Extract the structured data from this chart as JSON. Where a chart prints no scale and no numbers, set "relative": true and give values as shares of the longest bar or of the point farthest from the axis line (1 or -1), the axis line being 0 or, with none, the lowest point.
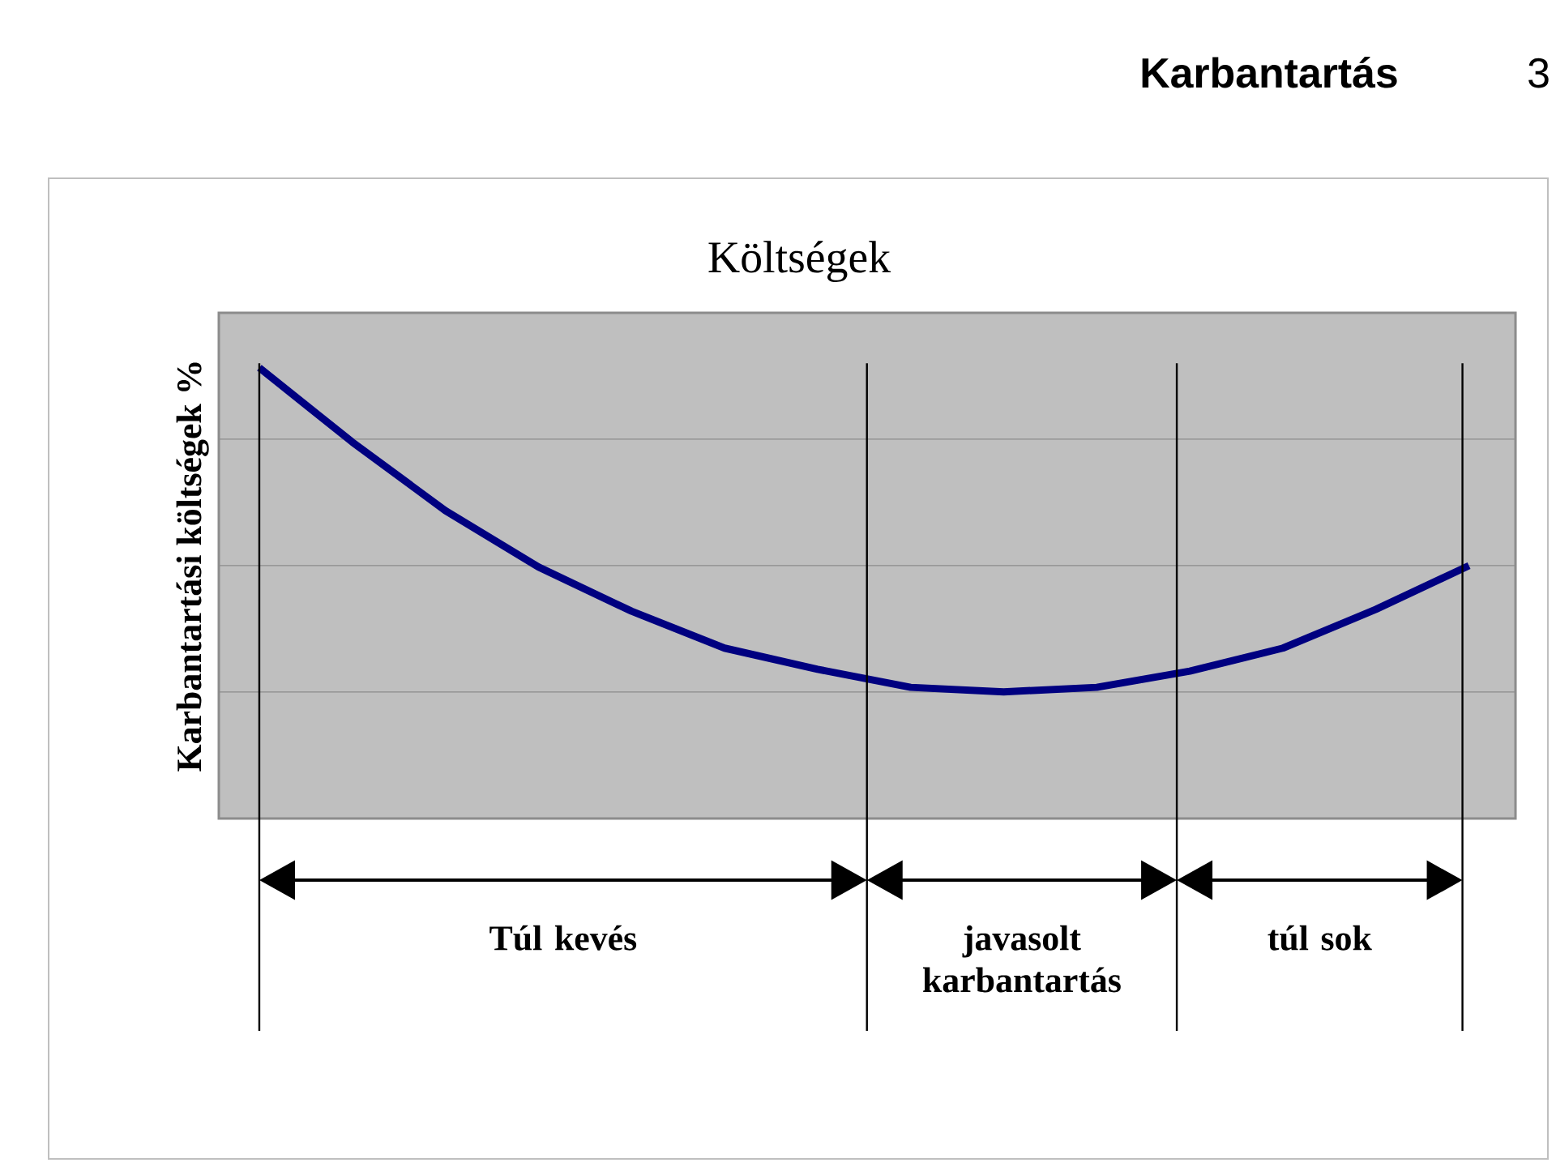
{
  "chart_data": {
    "type": "line",
    "title": "Költségek",
    "ylabel": "Karbantartási költségek %",
    "relative": true,
    "categories": [
      null,
      null,
      null,
      null,
      null,
      null,
      null,
      null,
      null,
      null,
      null,
      null,
      null,
      null
    ],
    "series": [
      {
        "color": "#000080",
        "values": [
          1.0,
          0.835,
          0.683,
          0.558,
          0.46,
          0.378,
          0.331,
          0.291,
          0.281,
          0.291,
          0.327,
          0.378,
          0.464,
          0.561
        ]
      }
    ],
    "grid": "y",
    "marker": "none",
    "line_style": "solid",
    "annotations": [
      "Karbantartás",
      "3",
      "Túl kevés",
      "javasolt karbantartás",
      "túl sok"
    ]
  }
}
